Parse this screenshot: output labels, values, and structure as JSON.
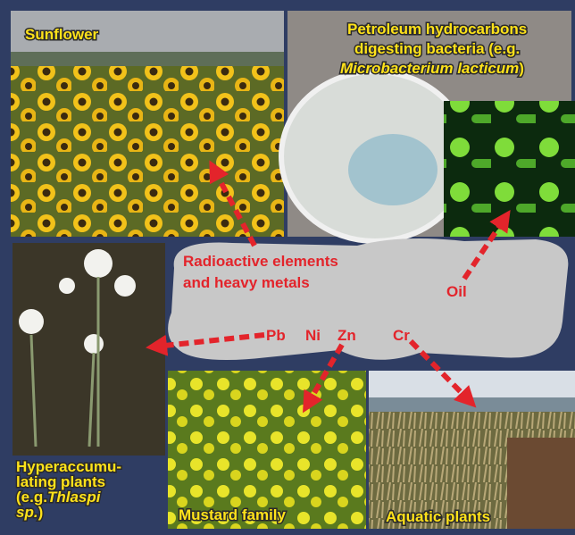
{
  "panels": {
    "sunflower": {
      "label": "Sunflower"
    },
    "bacteria": {
      "label_lines": [
        "Petroleum hydrocarbons",
        "digesting bacteria (e.g."
      ],
      "species": "Microbacterium lacticum",
      "close": ")"
    },
    "hyperaccumulating": {
      "label_lines": [
        "Hyperaccumu-",
        "lating plants"
      ],
      "prefix": "(e.g.",
      "species": "Thlaspi",
      "suffix": "sp.",
      "close": ")"
    },
    "mustard": {
      "label": "Mustard family"
    },
    "aquatic": {
      "label": "Aquatic plants"
    }
  },
  "contaminants": {
    "heading_lines": [
      "Radioactive elements",
      "and heavy metals"
    ],
    "oil": "Oil",
    "metals": [
      "Pb",
      "Ni",
      "Zn",
      "Cr"
    ]
  }
}
